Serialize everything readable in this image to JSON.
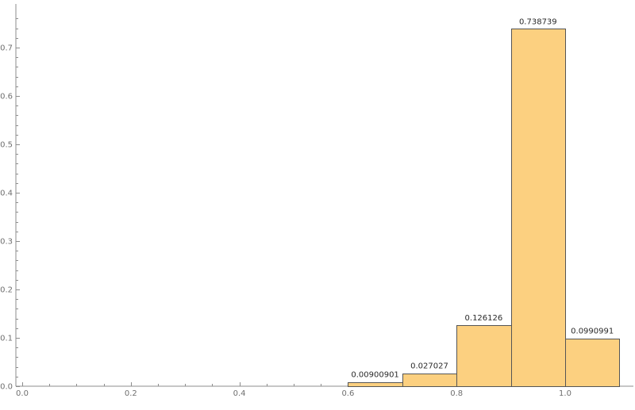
{
  "chart_data": {
    "type": "bar",
    "title": "",
    "xlabel": "",
    "ylabel": "",
    "bin_edges": [
      0.6,
      0.7,
      0.8,
      0.9,
      1.0,
      1.1
    ],
    "values": [
      0.00900901,
      0.027027,
      0.126126,
      0.738739,
      0.0990991
    ],
    "value_labels": [
      "0.00900901",
      "0.027027",
      "0.126126",
      "0.738739",
      "0.0990991"
    ],
    "xlim": [
      -0.02,
      1.12
    ],
    "ylim": [
      0,
      0.765
    ],
    "x_ticks": [
      0.0,
      0.2,
      0.4,
      0.6,
      0.8,
      1.0
    ],
    "x_tick_labels": [
      "0.0",
      "0.2",
      "0.4",
      "0.6",
      "0.8",
      "1.0"
    ],
    "y_ticks": [
      0.0,
      0.1,
      0.2,
      0.3,
      0.4,
      0.5,
      0.6,
      0.7
    ],
    "y_tick_labels": [
      "0.0",
      "0.1",
      "0.2",
      "0.3",
      "0.4",
      "0.5",
      "0.6",
      "0.7"
    ],
    "grid": false,
    "bar_color": "#fcd080",
    "edge_color": "#555555"
  }
}
